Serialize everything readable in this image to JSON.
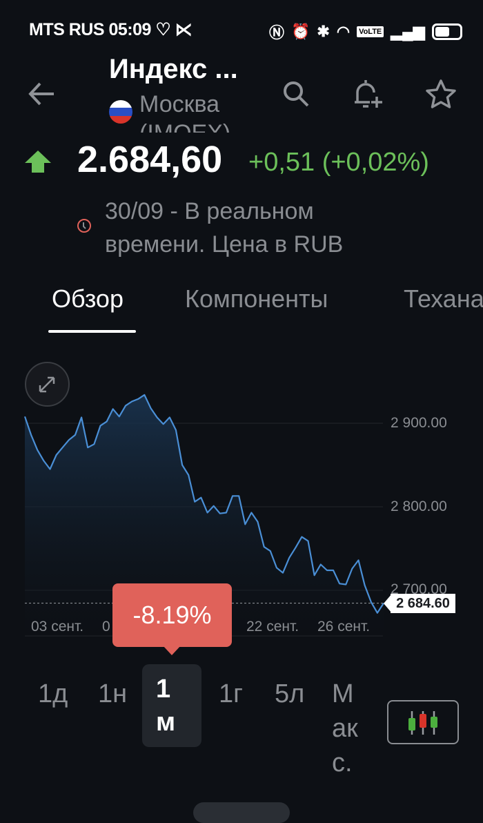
{
  "status_bar": {
    "carrier": "MTS RUS",
    "time": "05:09",
    "volte": "VoLTE",
    "battery_level": 0.6
  },
  "header": {
    "title": "Индекс ...",
    "exchange": "Москва (IMOEX)"
  },
  "quote": {
    "price": "2.684,60",
    "change": "+0,51 (+0,02%)",
    "timestamp": "30/09 - В реальном времени. Цена в RUB",
    "direction": "up",
    "change_color": "#6cc05a"
  },
  "tabs": [
    {
      "label": "Обзор",
      "active": true
    },
    {
      "label": "Компоненты"
    },
    {
      "label": "Техана"
    }
  ],
  "chart_data": {
    "type": "area",
    "yticks": [
      "2 900.00",
      "2 800.00",
      "2 700.00"
    ],
    "ytick_values": [
      2900,
      2800,
      2700
    ],
    "xticks": [
      "03 сент.",
      "0",
      "22 сент.",
      "26 сент."
    ],
    "ylim": [
      2660,
      2945
    ],
    "values": [
      2908,
      2886,
      2868,
      2855,
      2845,
      2862,
      2871,
      2880,
      2886,
      2907,
      2871,
      2875,
      2897,
      2902,
      2917,
      2908,
      2921,
      2926,
      2929,
      2934,
      2918,
      2907,
      2899,
      2907,
      2892,
      2850,
      2838,
      2806,
      2811,
      2793,
      2801,
      2792,
      2793,
      2813,
      2813,
      2779,
      2793,
      2782,
      2752,
      2747,
      2727,
      2721,
      2739,
      2751,
      2764,
      2759,
      2718,
      2731,
      2724,
      2724,
      2708,
      2707,
      2726,
      2736,
      2706,
      2686,
      2673,
      2684.6
    ],
    "last_price": "2 684.60",
    "line_color": "#4a8fd6",
    "period_change": "-8.19%",
    "period_change_color": "#e0625a"
  },
  "periods": [
    {
      "label": "1д"
    },
    {
      "label": "1н"
    },
    {
      "label": "1\nм",
      "selected": true
    },
    {
      "label": "1г"
    },
    {
      "label": "5л"
    },
    {
      "label": "М\nак\nс."
    }
  ]
}
